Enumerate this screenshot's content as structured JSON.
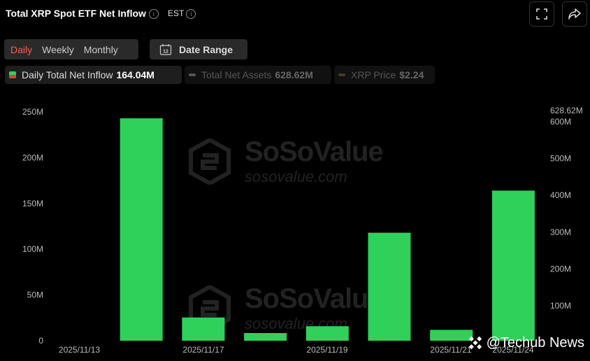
{
  "header": {
    "title": "Total XRP Spot ETF Net Inflow",
    "timezone": "EST"
  },
  "toolbar": {
    "periods": [
      "Daily",
      "Weekly",
      "Monthly"
    ],
    "active_period": "Daily",
    "date_range_label": "Date Range",
    "calendar_day": "12"
  },
  "legend": {
    "inflow_label": "Daily Total Net Inflow",
    "inflow_value": "164.04M",
    "assets_label": "Total Net Assets",
    "assets_value": "628.62M",
    "price_label": "XRP Price",
    "price_value": "$2.24"
  },
  "watermark": {
    "brand": "SoSoValue",
    "site": "sosovalue.com"
  },
  "credit": {
    "text": "@Techub News"
  },
  "colors": {
    "bar": "#2fd15a",
    "active": "#ff5a52",
    "axis_text": "#bbbbbb"
  },
  "chart_data": {
    "type": "bar",
    "x_tick_labels": [
      "2025/11/13",
      "2025/11/17",
      "2025/11/19",
      "2025/11/21",
      "2025/11/24"
    ],
    "y_left_ticks": [
      "250M",
      "200M",
      "150M",
      "100M",
      "50M",
      "0"
    ],
    "y_right_ticks": [
      "600M",
      "500M",
      "400M",
      "300M",
      "200M",
      "100M"
    ],
    "y_right_top_label": "628.62M",
    "ylim": [
      0,
      250000000
    ],
    "series": [
      {
        "name": "Daily Total Net Inflow",
        "values": [
          243050000,
          25410000,
          8390000,
          15840000,
          118020000,
          11870000,
          164040000
        ]
      }
    ],
    "grid": false
  }
}
